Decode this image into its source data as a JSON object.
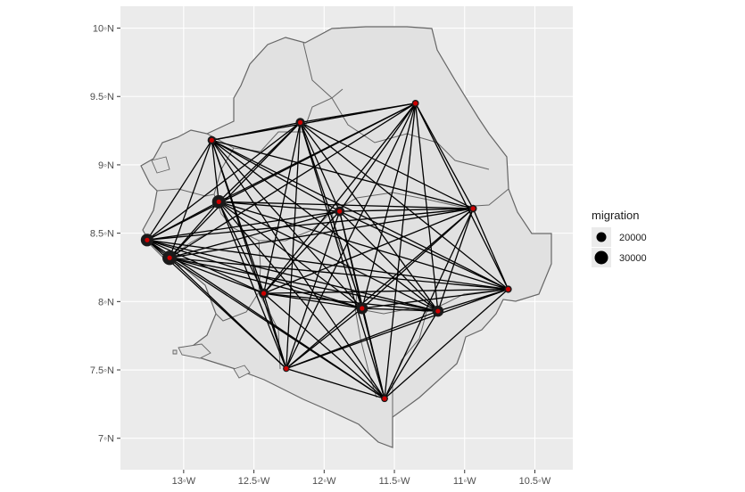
{
  "chart_data": {
    "type": "map",
    "region": "Sierra Leone",
    "x_ticks": [
      {
        "lon": -13.0,
        "label": "13◦W"
      },
      {
        "lon": -12.5,
        "label": "12.5◦W"
      },
      {
        "lon": -12.0,
        "label": "12◦W"
      },
      {
        "lon": -11.5,
        "label": "11.5◦W"
      },
      {
        "lon": -11.0,
        "label": "11◦W"
      },
      {
        "lon": -10.5,
        "label": "10.5◦W"
      }
    ],
    "y_ticks": [
      {
        "lat": 10.0,
        "label": "10◦N"
      },
      {
        "lat": 9.5,
        "label": "9.5◦N"
      },
      {
        "lat": 9.0,
        "label": "9◦N"
      },
      {
        "lat": 8.5,
        "label": "8.5◦N"
      },
      {
        "lat": 8.0,
        "label": "8◦N"
      },
      {
        "lat": 7.5,
        "label": "7.5◦N"
      },
      {
        "lat": 7.0,
        "label": "7◦N"
      }
    ],
    "xlim": [
      -13.45,
      -10.23
    ],
    "ylim": [
      6.77,
      10.16
    ],
    "nodes": [
      {
        "lon": -13.26,
        "lat": 8.45,
        "migration": 28000
      },
      {
        "lon": -13.1,
        "lat": 8.32,
        "migration": 33000
      },
      {
        "lon": -12.8,
        "lat": 9.18,
        "migration": 16000
      },
      {
        "lon": -12.17,
        "lat": 9.31,
        "migration": 18000
      },
      {
        "lon": -11.35,
        "lat": 9.45,
        "migration": 12000
      },
      {
        "lon": -12.75,
        "lat": 8.73,
        "migration": 30000
      },
      {
        "lon": -11.89,
        "lat": 8.66,
        "migration": 20000
      },
      {
        "lon": -10.94,
        "lat": 8.68,
        "migration": 14000
      },
      {
        "lon": -10.69,
        "lat": 8.09,
        "migration": 13000
      },
      {
        "lon": -12.43,
        "lat": 8.06,
        "migration": 20000
      },
      {
        "lon": -11.73,
        "lat": 7.95,
        "migration": 25000
      },
      {
        "lon": -11.19,
        "lat": 7.93,
        "migration": 24000
      },
      {
        "lon": -12.27,
        "lat": 7.51,
        "migration": 11000
      },
      {
        "lon": -11.57,
        "lat": 7.29,
        "migration": 12000
      }
    ],
    "all_pairs_connected": true,
    "legend": {
      "title": "migration",
      "placement": "right",
      "entries": [
        {
          "label": "20000",
          "value": 20000
        },
        {
          "label": "30000",
          "value": 30000
        }
      ]
    },
    "colors": {
      "panel_bg": "#ebebeb",
      "grid": "#ffffff",
      "land_fill": "#e1e1e1",
      "border": "#666666",
      "flow_line": "#000000",
      "node_fill": "#1a1a1a",
      "node_center": "#cc0000"
    }
  }
}
